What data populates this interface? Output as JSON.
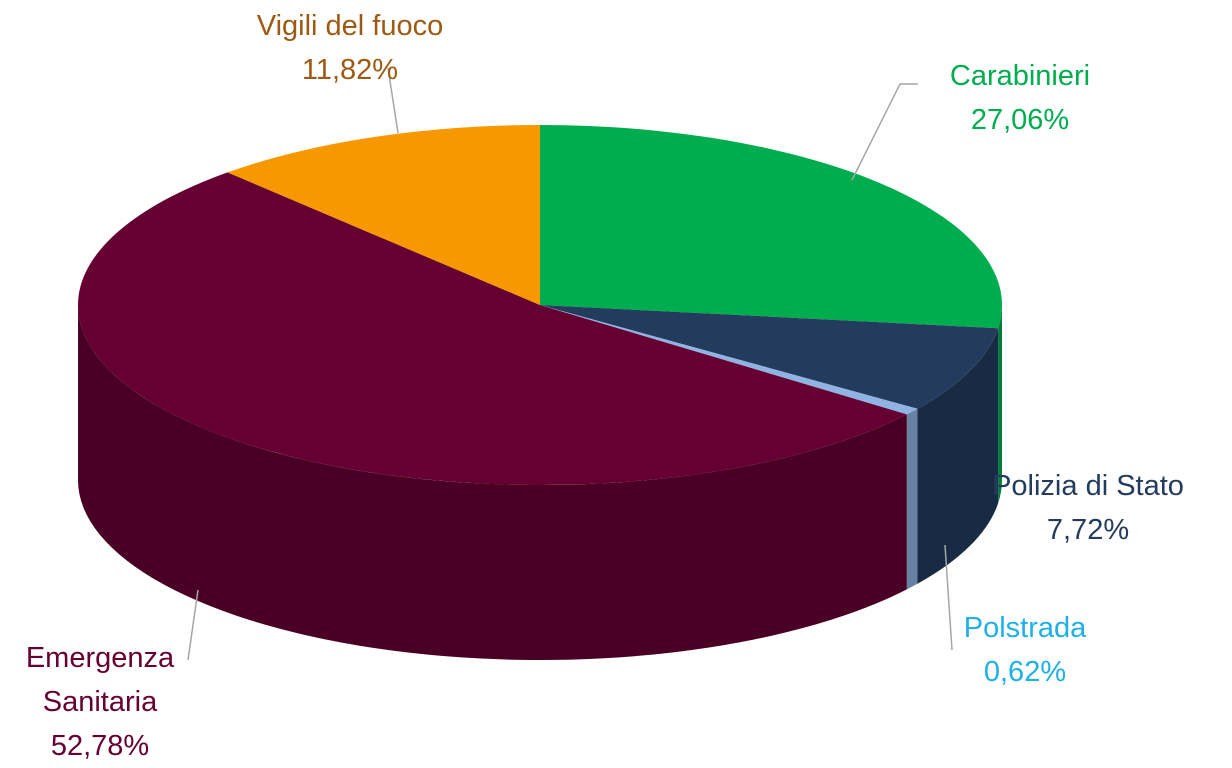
{
  "chart_data": {
    "type": "pie3d",
    "categories": [
      "Carabinieri",
      "Polizia di Stato",
      "Polstrada",
      "Emergenza Sanitaria",
      "Vigili del fuoco"
    ],
    "values": [
      27.06,
      7.72,
      0.62,
      52.78,
      11.82
    ],
    "value_labels": [
      "27,06%",
      "7,72%",
      "0,62%",
      "52,78%",
      "11,82%"
    ],
    "colors": [
      "#00ad4e",
      "#233c5e",
      "#8fb4e3",
      "#660032",
      "#f79800"
    ],
    "label_colors": [
      "#00ad4e",
      "#233c5e",
      "#1fb0e8",
      "#660032",
      "#9c5a12"
    ]
  }
}
